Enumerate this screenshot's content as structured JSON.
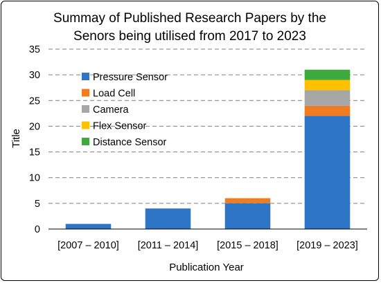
{
  "chart_data": {
    "type": "bar",
    "stacked": true,
    "title_lines": [
      "Summay of Published Research Papers by the",
      "Senors being utilised from 2017 to 2023"
    ],
    "xlabel": "Publication Year",
    "ylabel": "Title",
    "ylim": [
      0,
      35
    ],
    "yticks": [
      0,
      5,
      10,
      15,
      20,
      25,
      30,
      35
    ],
    "grid": "horizontal-dashed",
    "legend_position": "left-inside",
    "categories": [
      "[2007 – 2010]",
      "[2011 – 2014]",
      "[2015 – 2018]",
      "[2019 – 2023]"
    ],
    "series": [
      {
        "name": "Pressure Sensor",
        "color": "#2E75C6",
        "values": [
          1,
          4,
          5,
          22
        ]
      },
      {
        "name": "Load Cell",
        "color": "#F07C1F",
        "values": [
          0,
          0,
          1,
          2
        ]
      },
      {
        "name": "Camera",
        "color": "#A6A6A6",
        "values": [
          0,
          0,
          0,
          3
        ]
      },
      {
        "name": "Flex Sensor",
        "color": "#FFC000",
        "values": [
          0,
          0,
          0,
          2
        ]
      },
      {
        "name": "Distance Sensor",
        "color": "#3DAA3D",
        "values": [
          0,
          0,
          0,
          2
        ]
      }
    ]
  }
}
